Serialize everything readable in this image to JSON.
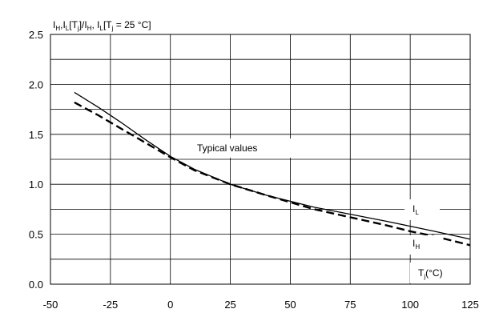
{
  "chart_data": {
    "type": "line",
    "title": "",
    "ylabel": "I_H, I_L[T_j]/I_H, I_L[T_j = 25 °C]",
    "ylabel_parts": {
      "a": "I",
      "a_sub": "H",
      "b": ",I",
      "b_sub": "L",
      "c": "[T",
      "c_sub": "j",
      "d": "]/I",
      "d_sub": "H",
      "e": ", I",
      "e_sub": "L",
      "f": "[T",
      "f_sub": "j",
      "g": " = 25 °C]"
    },
    "xlabel_parts": {
      "main": "T",
      "sub": "j",
      "rest": "(°C)"
    },
    "annotation": "Typical values",
    "xlim": [
      -50,
      125
    ],
    "ylim": [
      0.0,
      2.5
    ],
    "x_ticks": [
      "-50",
      "-25",
      "0",
      "25",
      "50",
      "75",
      "100",
      "125"
    ],
    "y_ticks": [
      "0.0",
      "0.5",
      "1.0",
      "1.5",
      "2.0",
      "2.5"
    ],
    "grid": true,
    "series": [
      {
        "name": "I_L",
        "label_main": "I",
        "label_sub": "L",
        "style": "solid",
        "x": [
          -40,
          -30,
          -20,
          -10,
          0,
          10,
          25,
          40,
          50,
          60,
          75,
          90,
          100,
          110,
          125
        ],
        "y": [
          1.92,
          1.77,
          1.61,
          1.44,
          1.28,
          1.15,
          1.0,
          0.89,
          0.83,
          0.77,
          0.7,
          0.63,
          0.58,
          0.53,
          0.45
        ]
      },
      {
        "name": "I_H",
        "label_main": "I",
        "label_sub": "H",
        "style": "dashed",
        "x": [
          -40,
          -30,
          -20,
          -10,
          0,
          10,
          25,
          40,
          50,
          60,
          75,
          90,
          100,
          110,
          125
        ],
        "y": [
          1.82,
          1.69,
          1.55,
          1.41,
          1.27,
          1.14,
          1.0,
          0.89,
          0.82,
          0.75,
          0.67,
          0.59,
          0.53,
          0.48,
          0.39
        ]
      }
    ]
  }
}
